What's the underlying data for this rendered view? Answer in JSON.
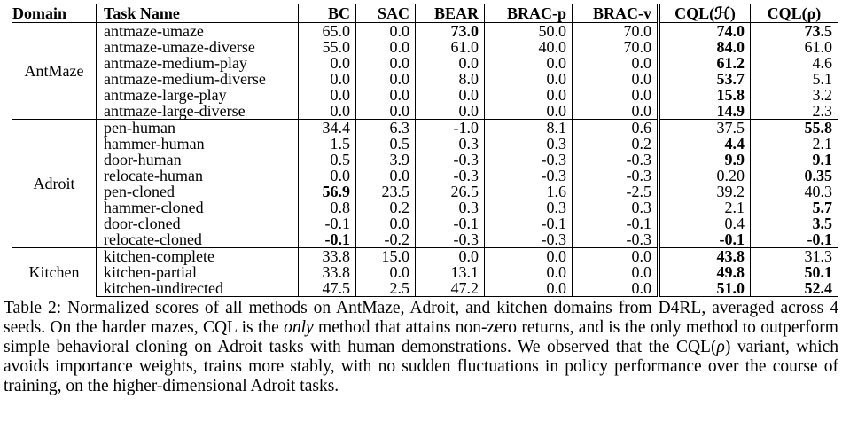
{
  "table": {
    "headers": [
      "Domain",
      "Task Name",
      "BC",
      "SAC",
      "BEAR",
      "BRAC-p",
      "BRAC-v",
      "CQL(ℋ)",
      "CQL(ρ)"
    ],
    "groups": [
      {
        "domain": "AntMaze",
        "rows": [
          {
            "task": "antmaze-umaze",
            "values": [
              "65.0",
              "0.0",
              "73.0",
              "50.0",
              "70.0",
              "74.0",
              "73.5"
            ],
            "bold": [
              2,
              5,
              6
            ]
          },
          {
            "task": "antmaze-umaze-diverse",
            "values": [
              "55.0",
              "0.0",
              "61.0",
              "40.0",
              "70.0",
              "84.0",
              "61.0"
            ],
            "bold": [
              5
            ]
          },
          {
            "task": "antmaze-medium-play",
            "values": [
              "0.0",
              "0.0",
              "0.0",
              "0.0",
              "0.0",
              "61.2",
              "4.6"
            ],
            "bold": [
              5
            ]
          },
          {
            "task": "antmaze-medium-diverse",
            "values": [
              "0.0",
              "0.0",
              "8.0",
              "0.0",
              "0.0",
              "53.7",
              "5.1"
            ],
            "bold": [
              5
            ]
          },
          {
            "task": "antmaze-large-play",
            "values": [
              "0.0",
              "0.0",
              "0.0",
              "0.0",
              "0.0",
              "15.8",
              "3.2"
            ],
            "bold": [
              5
            ]
          },
          {
            "task": "antmaze-large-diverse",
            "values": [
              "0.0",
              "0.0",
              "0.0",
              "0.0",
              "0.0",
              "14.9",
              "2.3"
            ],
            "bold": [
              5
            ]
          }
        ]
      },
      {
        "domain": "Adroit",
        "rows": [
          {
            "task": "pen-human",
            "values": [
              "34.4",
              "6.3",
              "-1.0",
              "8.1",
              "0.6",
              "37.5",
              "55.8"
            ],
            "bold": [
              6
            ]
          },
          {
            "task": "hammer-human",
            "values": [
              "1.5",
              "0.5",
              "0.3",
              "0.3",
              "0.2",
              "4.4",
              "2.1"
            ],
            "bold": [
              5
            ]
          },
          {
            "task": "door-human",
            "values": [
              "0.5",
              "3.9",
              "-0.3",
              "-0.3",
              "-0.3",
              "9.9",
              "9.1"
            ],
            "bold": [
              5,
              6
            ]
          },
          {
            "task": "relocate-human",
            "values": [
              "0.0",
              "0.0",
              "-0.3",
              "-0.3",
              "-0.3",
              "0.20",
              "0.35"
            ],
            "bold": [
              6
            ]
          },
          {
            "task": "pen-cloned",
            "values": [
              "56.9",
              "23.5",
              "26.5",
              "1.6",
              "-2.5",
              "39.2",
              "40.3"
            ],
            "bold": [
              0
            ]
          },
          {
            "task": "hammer-cloned",
            "values": [
              "0.8",
              "0.2",
              "0.3",
              "0.3",
              "0.3",
              "2.1",
              "5.7"
            ],
            "bold": [
              6
            ]
          },
          {
            "task": "door-cloned",
            "values": [
              "-0.1",
              "0.0",
              "-0.1",
              "-0.1",
              "-0.1",
              "0.4",
              "3.5"
            ],
            "bold": [
              6
            ]
          },
          {
            "task": "relocate-cloned",
            "values": [
              "-0.1",
              "-0.2",
              "-0.3",
              "-0.3",
              "-0.3",
              "-0.1",
              "-0.1"
            ],
            "bold": [
              0,
              5,
              6
            ]
          }
        ]
      },
      {
        "domain": "Kitchen",
        "rows": [
          {
            "task": "kitchen-complete",
            "values": [
              "33.8",
              "15.0",
              "0.0",
              "0.0",
              "0.0",
              "43.8",
              "31.3"
            ],
            "bold": [
              5
            ]
          },
          {
            "task": "kitchen-partial",
            "values": [
              "33.8",
              "0.0",
              "13.1",
              "0.0",
              "0.0",
              "49.8",
              "50.1"
            ],
            "bold": [
              5,
              6
            ]
          },
          {
            "task": "kitchen-undirected",
            "values": [
              "47.5",
              "2.5",
              "47.2",
              "0.0",
              "0.0",
              "51.0",
              "52.4"
            ],
            "bold": [
              5,
              6
            ]
          }
        ]
      }
    ]
  },
  "caption": {
    "part1": "Table 2: Normalized scores of all methods on AntMaze, Adroit, and kitchen domains from D4RL, averaged across 4 seeds. On the harder mazes, CQL is the ",
    "emph": "only",
    "part2": " method that attains non-zero returns, and is the only method to outperform simple behavioral cloning on Adroit tasks with human demonstrations. We observed that the CQL(",
    "rho": "ρ",
    "part3": ") variant, which avoids importance weights, trains more stably, with no sudden fluctuations in policy performance over the course of training, on the higher-dimensional Adroit tasks."
  }
}
